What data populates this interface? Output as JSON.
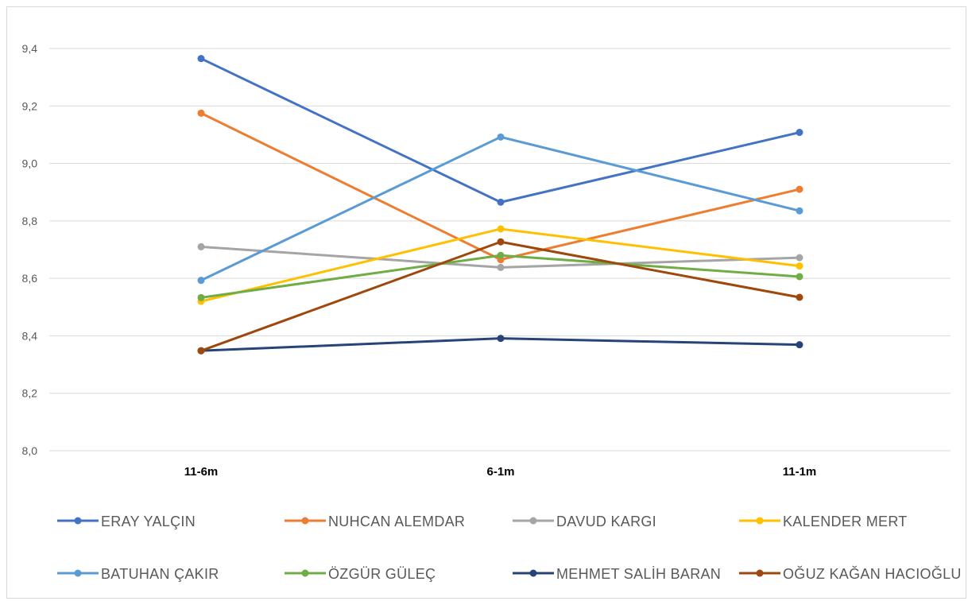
{
  "chart_data": {
    "type": "line",
    "title": "",
    "xlabel": "",
    "ylabel": "",
    "categories": [
      "11-6m",
      "6-1m",
      "11-1m"
    ],
    "ylim": [
      8.0,
      9.4
    ],
    "yticks": [
      "8,0",
      "8,2",
      "8,4",
      "8,6",
      "8,8",
      "9,0",
      "9,2",
      "9,4"
    ],
    "ytick_values": [
      8.0,
      8.2,
      8.4,
      8.6,
      8.8,
      9.0,
      9.2,
      9.4
    ],
    "grid": "horizontal",
    "legend_position": "bottom",
    "series": [
      {
        "name": "ERAY YALÇIN",
        "color": "#4472C4",
        "values": [
          9.365,
          8.865,
          9.108
        ]
      },
      {
        "name": "NUHCAN ALEMDAR",
        "color": "#ED7D31",
        "values": [
          9.175,
          8.665,
          8.91
        ]
      },
      {
        "name": "DAVUD KARGI",
        "color": "#A5A5A5",
        "values": [
          8.71,
          8.638,
          8.672
        ]
      },
      {
        "name": "KALENDER MERT",
        "color": "#FFC000",
        "values": [
          8.52,
          8.772,
          8.643
        ]
      },
      {
        "name": "BATUHAN ÇAKIR",
        "color": "#5B9BD5",
        "values": [
          8.593,
          9.092,
          8.835
        ]
      },
      {
        "name": "ÖZGÜR GÜLEÇ",
        "color": "#70AD47",
        "values": [
          8.533,
          8.68,
          8.606
        ]
      },
      {
        "name": "MEHMET SALİH BARAN",
        "color": "#264478",
        "values": [
          8.348,
          8.391,
          8.369
        ]
      },
      {
        "name": "OĞUZ KAĞAN HACIOĞLU",
        "color": "#9E480E",
        "values": [
          8.348,
          8.727,
          8.534
        ]
      }
    ]
  }
}
